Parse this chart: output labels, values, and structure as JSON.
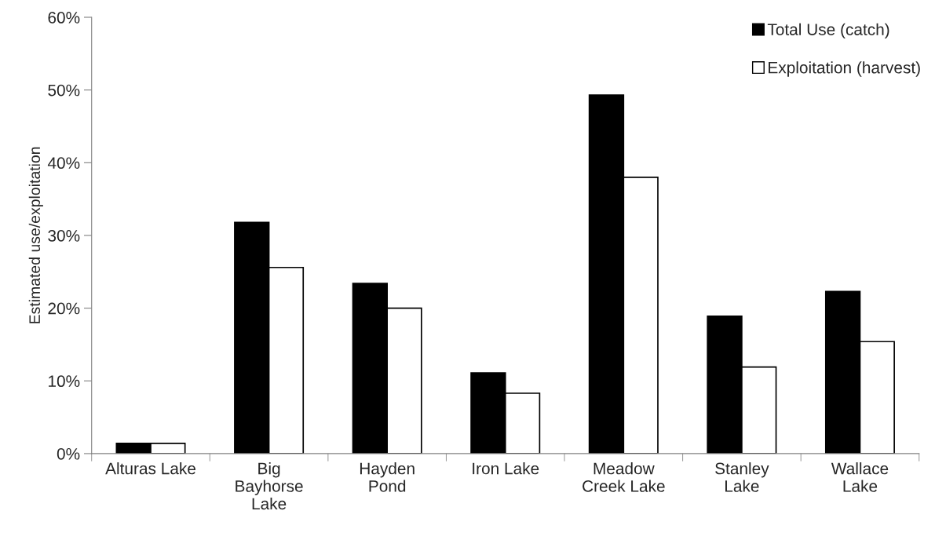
{
  "chart_data": {
    "type": "bar",
    "ylabel": "Estimated use/exploitation",
    "categories": [
      "Alturas Lake",
      "Big\nBayhorse\nLake",
      "Hayden\nPond",
      "Iron Lake",
      "Meadow\nCreek Lake",
      "Stanley\nLake",
      "Wallace\nLake"
    ],
    "series": [
      {
        "name": "Total Use (catch)",
        "color": "#000000",
        "values": [
          1.4,
          31.8,
          23.4,
          11.1,
          49.3,
          18.9,
          22.3
        ]
      },
      {
        "name": "Exploitation (harvest)",
        "color": "#ffffff",
        "values": [
          1.4,
          25.6,
          20.0,
          8.3,
          38.0,
          11.9,
          15.4
        ]
      }
    ],
    "ylim": [
      0,
      60
    ],
    "yticks": [
      {
        "value": 0,
        "label": "0%"
      },
      {
        "value": 10,
        "label": "10%"
      },
      {
        "value": 20,
        "label": "20%"
      },
      {
        "value": 30,
        "label": "30%"
      },
      {
        "value": 40,
        "label": "40%"
      },
      {
        "value": 50,
        "label": "50%"
      },
      {
        "value": 60,
        "label": "60%"
      }
    ],
    "grid": false,
    "legend": "top right"
  }
}
